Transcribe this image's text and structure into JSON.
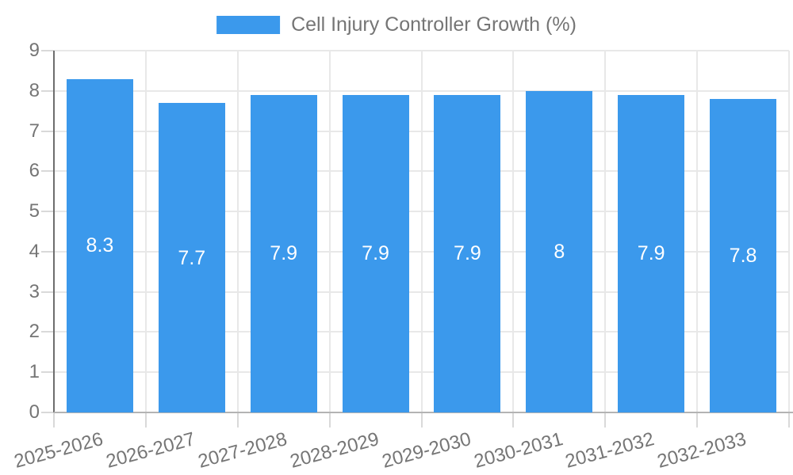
{
  "legend": {
    "label": "Cell Injury Controller Growth (%)",
    "swatch_color": "#3b99ec"
  },
  "chart_data": {
    "type": "bar",
    "title": "Cell Injury Controller Growth (%)",
    "categories": [
      "2025-2026",
      "2026-2027",
      "2027-2028",
      "2028-2029",
      "2029-2030",
      "2030-2031",
      "2031-2032",
      "2032-2033"
    ],
    "values": [
      8.3,
      7.7,
      7.9,
      7.9,
      7.9,
      8,
      7.9,
      7.8
    ],
    "value_labels": [
      "8.3",
      "7.7",
      "7.9",
      "7.9",
      "7.9",
      "8",
      "7.9",
      "7.8"
    ],
    "xlabel": "",
    "ylabel": "",
    "ylim": [
      0,
      9
    ],
    "yticks": [
      0,
      1,
      2,
      3,
      4,
      5,
      6,
      7,
      8,
      9
    ],
    "grid": true,
    "legend_position": "top",
    "bar_color": "#3b99ec",
    "value_label_color": "#ffffff",
    "axis_label_color": "#757575"
  },
  "colors": {
    "bar": "#3b99ec",
    "gridline": "#e8e8e8",
    "y_axis_line": "#6e6e6e",
    "x_axis_line": "#b3b3b3",
    "tick": "#d9d9d9",
    "text": "#757575",
    "background": "#ffffff"
  }
}
